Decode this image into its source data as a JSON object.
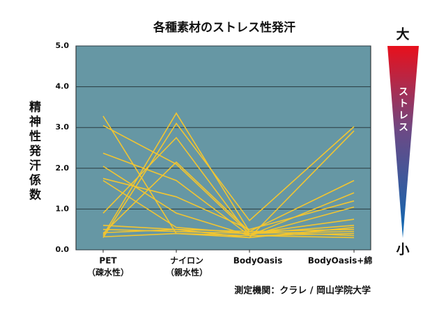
{
  "chart_data": {
    "type": "line",
    "title": "各種素材のストレス性発汗",
    "ylabel": "精神性発汗係数",
    "source": "測定機関：クラレ / 岡山学院大学",
    "stress_scale": {
      "top": "大",
      "label": "ストレス",
      "bottom": "小"
    },
    "categories": [
      [
        "PET",
        "（疎水性）"
      ],
      [
        "ナイロン",
        "（親水性）"
      ],
      [
        "BodyOasis"
      ],
      [
        "BodyOasis+綿"
      ]
    ],
    "ylim": [
      0,
      5
    ],
    "yticks": [
      {
        "value": 0,
        "label": "0.0"
      },
      {
        "value": 1,
        "label": "1.0"
      },
      {
        "value": 2,
        "label": "2.0"
      },
      {
        "value": 3,
        "label": "3.0"
      },
      {
        "value": 4,
        "label": "4.0"
      },
      {
        "value": 5,
        "label": "5.0"
      }
    ],
    "grid": true,
    "color": "#f2c530",
    "series": [
      {
        "values": [
          0.35,
          3.35,
          0.45,
          0.5
        ]
      },
      {
        "values": [
          0.3,
          3.1,
          0.72,
          3.02
        ]
      },
      {
        "values": [
          3.28,
          0.4,
          0.3,
          2.92
        ]
      },
      {
        "values": [
          3.05,
          2.1,
          0.4,
          0.6
        ]
      },
      {
        "values": [
          0.9,
          2.75,
          0.35,
          0.4
        ]
      },
      {
        "values": [
          0.4,
          2.15,
          0.45,
          1.7
        ]
      },
      {
        "values": [
          2.37,
          1.7,
          0.35,
          1.4
        ]
      },
      {
        "values": [
          1.75,
          1.3,
          0.5,
          1.2
        ]
      },
      {
        "values": [
          2.05,
          0.9,
          0.35,
          1.05
        ]
      },
      {
        "values": [
          1.7,
          0.55,
          0.4,
          0.75
        ]
      },
      {
        "values": [
          0.6,
          0.5,
          0.3,
          0.55
        ]
      },
      {
        "values": [
          0.5,
          0.45,
          0.4,
          0.45
        ]
      },
      {
        "values": [
          0.42,
          0.5,
          0.45,
          0.35
        ]
      },
      {
        "values": [
          0.32,
          0.4,
          0.35,
          0.3
        ]
      }
    ]
  }
}
